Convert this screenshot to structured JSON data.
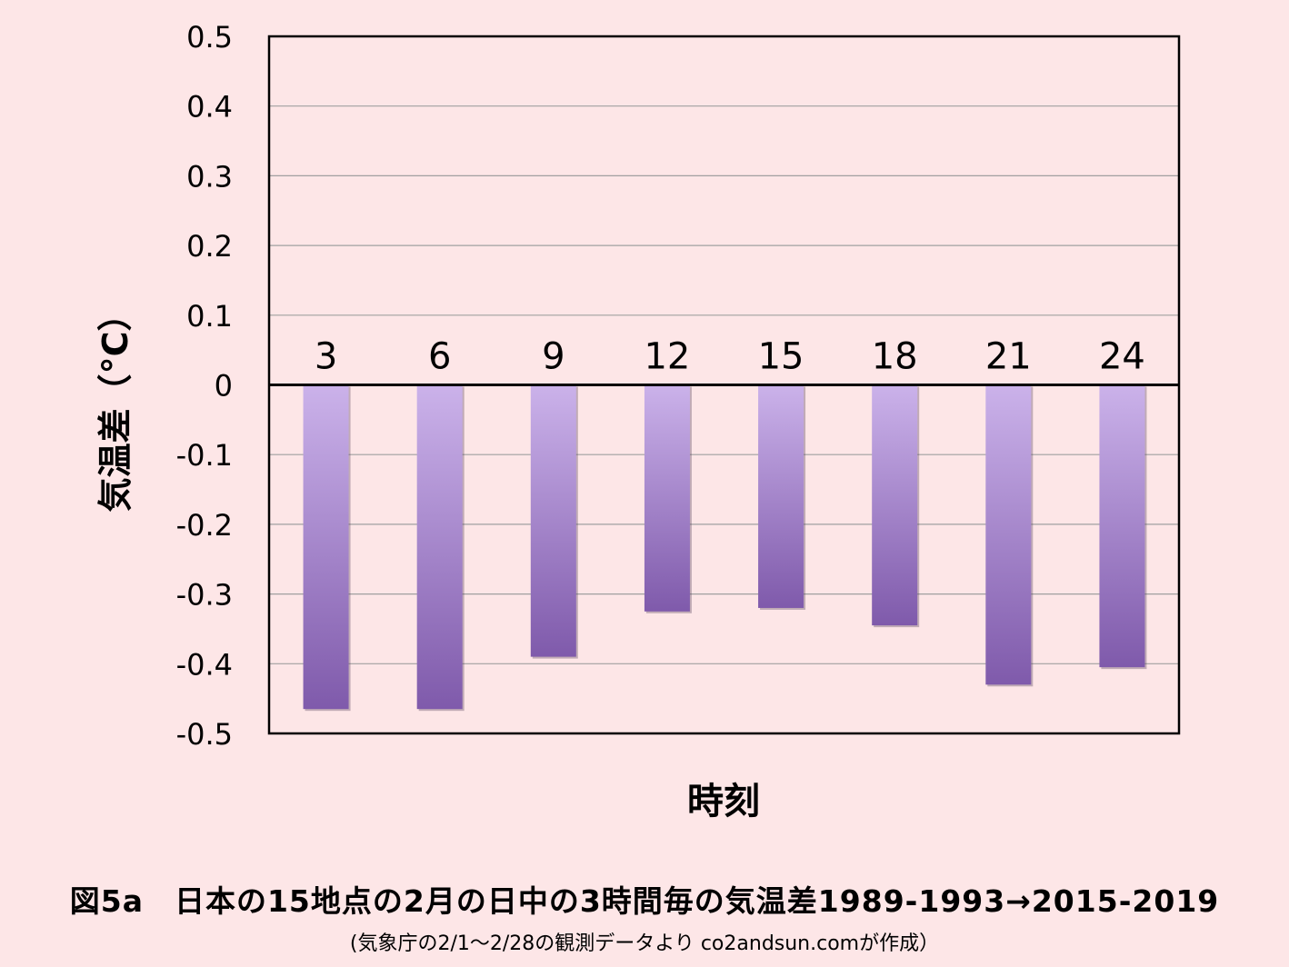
{
  "chart_data": {
    "type": "bar",
    "categories": [
      "3",
      "6",
      "9",
      "12",
      "15",
      "18",
      "21",
      "24"
    ],
    "values": [
      -0.465,
      -0.465,
      -0.39,
      -0.325,
      -0.32,
      -0.345,
      -0.43,
      -0.405
    ],
    "xlabel": "時刻",
    "ylabel": "気温差（°C）",
    "ylim": [
      -0.5,
      0.5
    ],
    "yticks": [
      "0.5",
      "0.4",
      "0.3",
      "0.2",
      "0.1",
      "0",
      "-0.1",
      "-0.2",
      "-0.3",
      "-0.4",
      "-0.5"
    ],
    "ytick_values": [
      0.5,
      0.4,
      0.3,
      0.2,
      0.1,
      0,
      -0.1,
      -0.2,
      -0.3,
      -0.4,
      -0.5
    ],
    "grid": true,
    "category_labels_position": "above zero line",
    "bar_gradient": [
      "#cbb2ea",
      "#7f5aab"
    ]
  },
  "caption": {
    "main": "図5a　日本の15地点の2月の日中の3時間毎の気温差1989-1993→2015-2019",
    "sub": "(気象庁の2/1～2/28の観測データより co2andsun.comが作成）"
  },
  "colors": {
    "background": "#fde6e7",
    "gridline": "#a0a0a0",
    "axis": "#000000"
  }
}
